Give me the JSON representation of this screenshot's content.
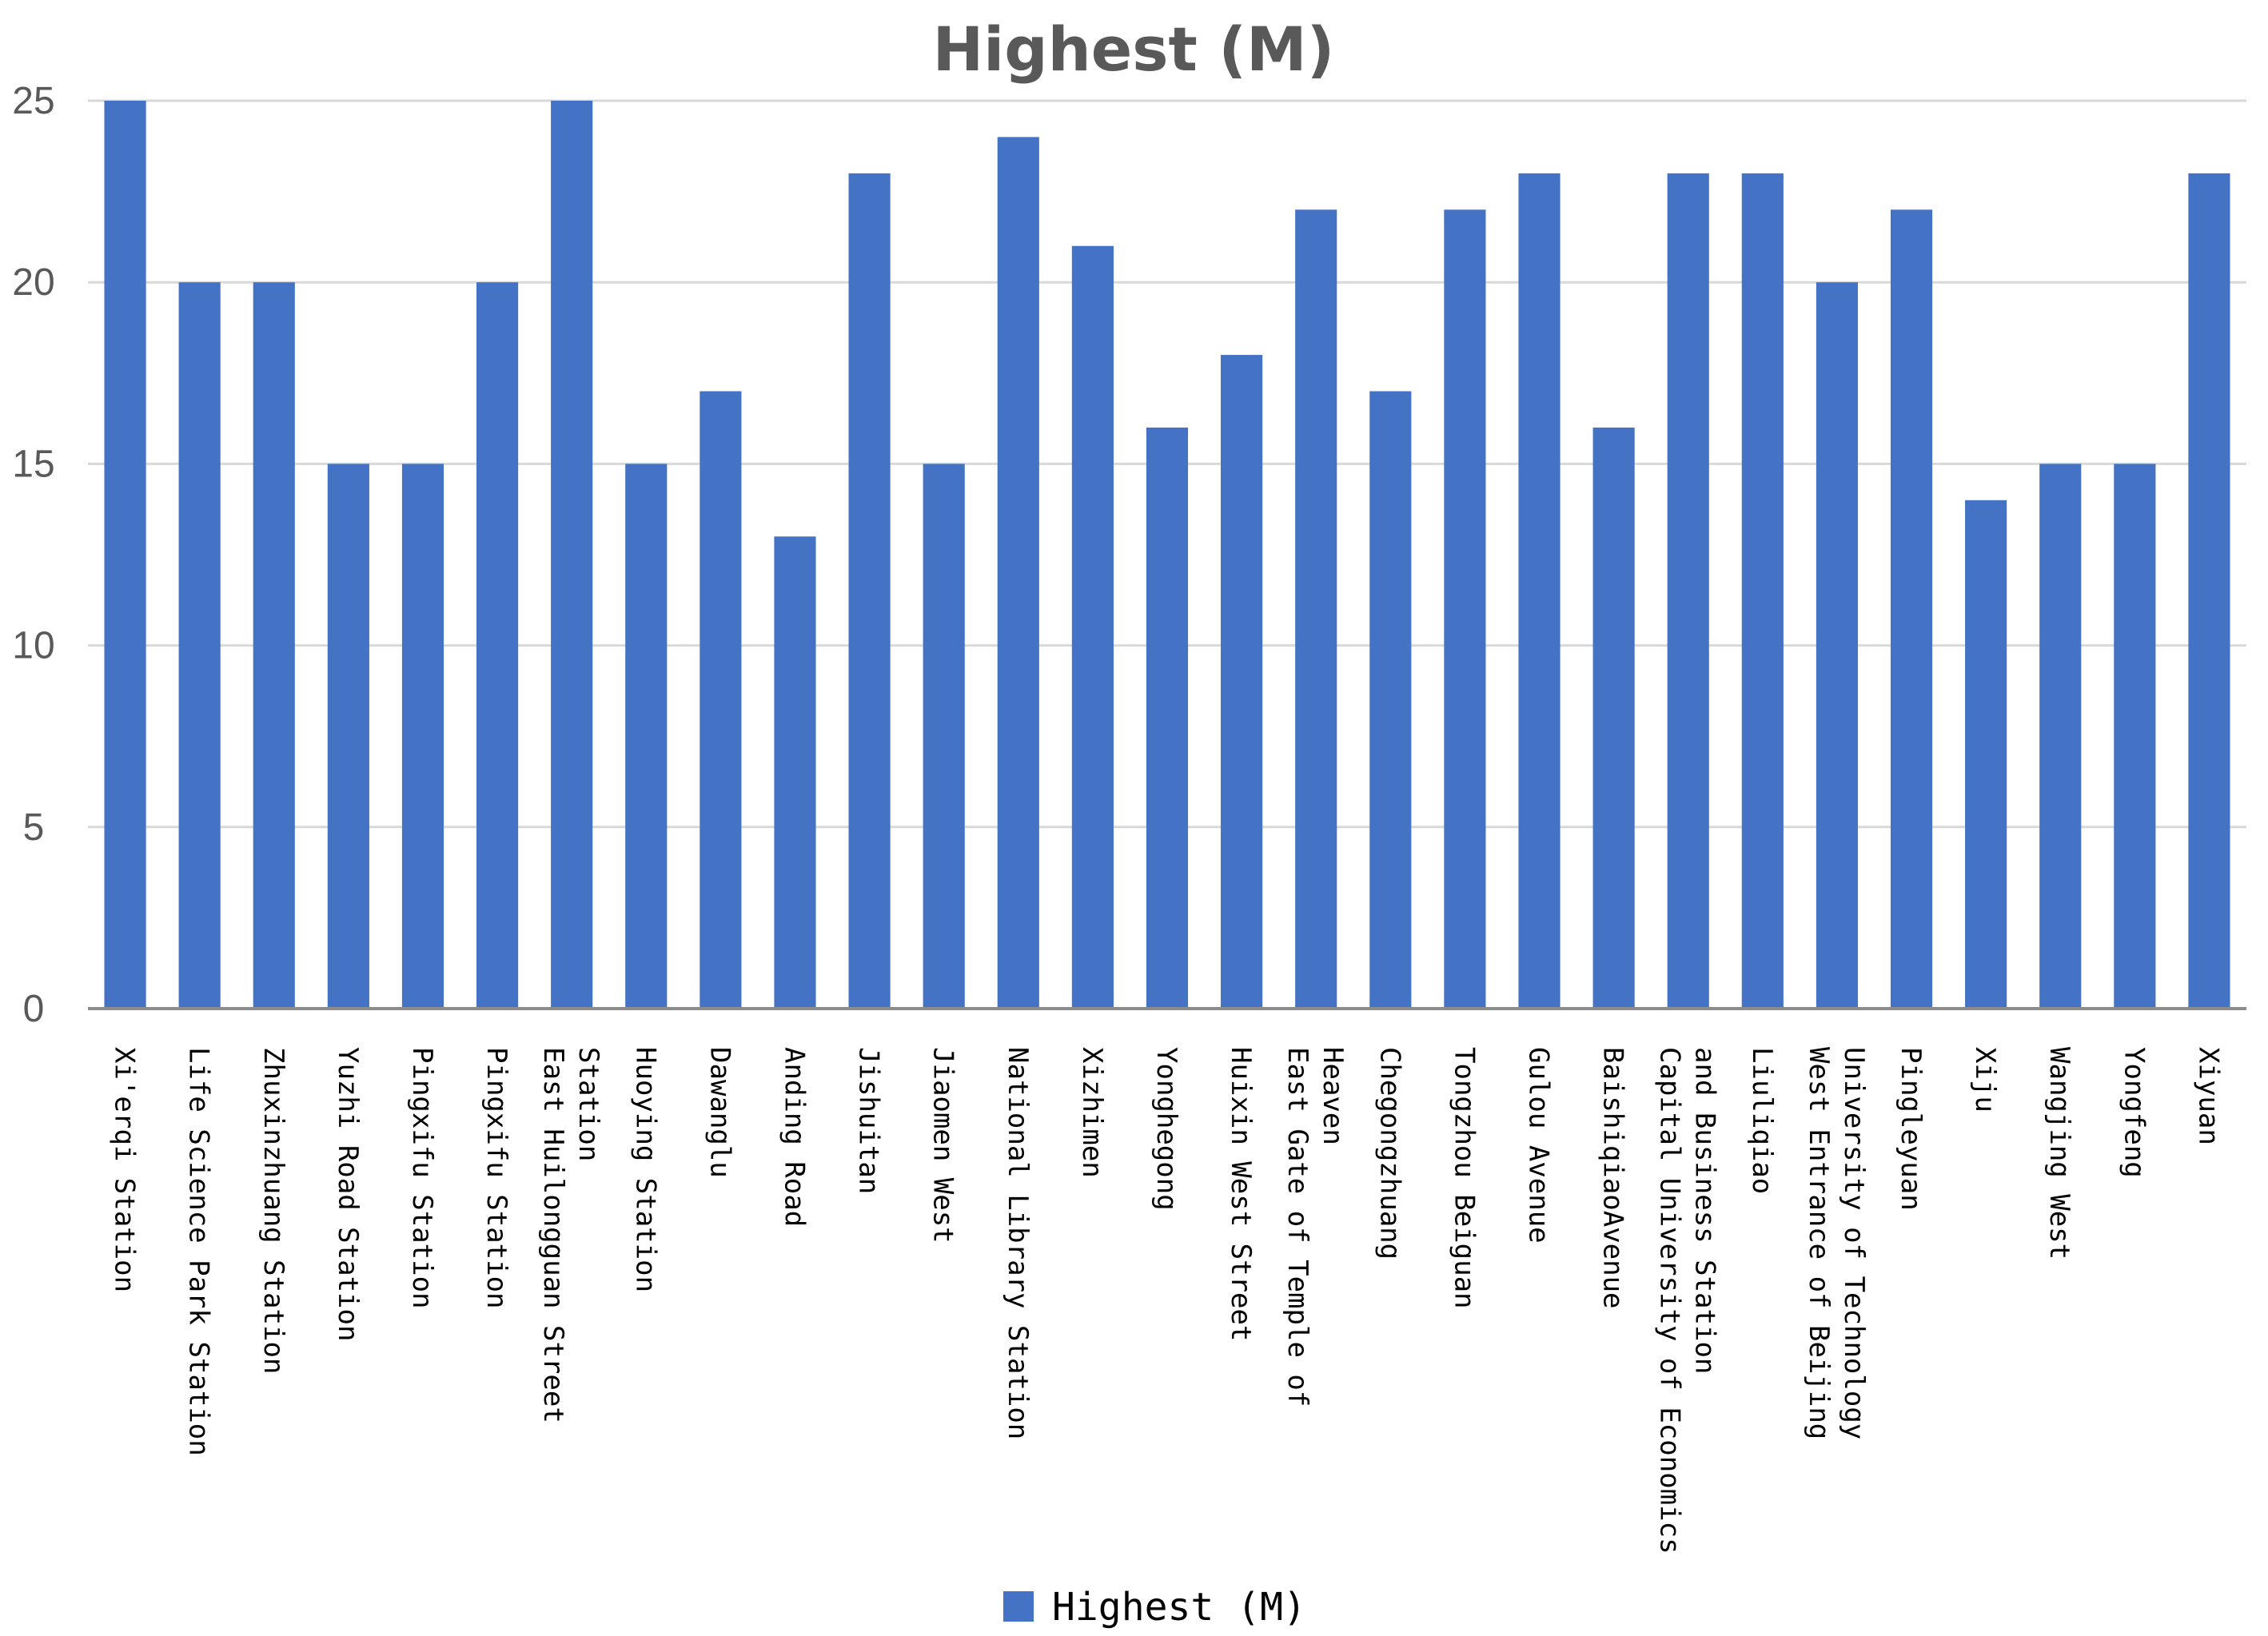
{
  "chart_data": {
    "type": "bar",
    "title": "Highest (M)",
    "xlabel": "",
    "ylabel": "",
    "ylim": [
      0,
      25
    ],
    "yticks": [
      0,
      5,
      10,
      15,
      20,
      25
    ],
    "grid": true,
    "legend_position": "bottom",
    "categories": [
      "Xi'erqi Station",
      "Life Science Park Station",
      "Zhuxinzhuang Station",
      "Yuzhi Road Station",
      "Pingxifu Station",
      "Pingxifu Station",
      "East Huilongguan Street Station",
      "Huoying Station",
      "Dawanglu",
      "Anding Road",
      "Jishuitan",
      "Jiaomen West",
      "National Library Station",
      "Xizhimen",
      "Yonghegong",
      "Huixin West Street",
      "East Gate of Temple of Heaven",
      "Chegongzhuang",
      "Tongzhou Beiguan",
      "Gulou Avenue",
      "BaishiqiaoAvenue",
      "Capital University of Economics and Business Station",
      "Liuliqiao",
      "West Entrance of Beijing University of Technology",
      "Pingleyuan",
      "Xiju",
      "Wangjing West",
      "Yongfeng",
      "Xiyuan"
    ],
    "tick_lines": [
      [
        "Xi'erqi Station"
      ],
      [
        "Life Science Park Station"
      ],
      [
        "Zhuxinzhuang Station"
      ],
      [
        "Yuzhi Road Station"
      ],
      [
        "Pingxifu Station"
      ],
      [
        "Pingxifu Station"
      ],
      [
        "East Huilongguan Street",
        "Station"
      ],
      [
        "Huoying Station"
      ],
      [
        "Dawanglu"
      ],
      [
        "Anding Road"
      ],
      [
        "Jishuitan"
      ],
      [
        "Jiaomen West"
      ],
      [
        "National Library Station"
      ],
      [
        "Xizhimen"
      ],
      [
        "Yonghegong"
      ],
      [
        "Huixin West Street"
      ],
      [
        "East Gate of Temple of",
        "Heaven"
      ],
      [
        "Chegongzhuang"
      ],
      [
        "Tongzhou Beiguan"
      ],
      [
        "Gulou Avenue"
      ],
      [
        "BaishiqiaoAvenue"
      ],
      [
        "Capital University of Economics",
        "and Business Station"
      ],
      [
        "Liuliqiao"
      ],
      [
        "West Entrance of Beijing",
        "University of Technology"
      ],
      [
        "Pingleyuan"
      ],
      [
        "Xiju"
      ],
      [
        "Wangjing West"
      ],
      [
        "Yongfeng"
      ],
      [
        "Xiyuan"
      ]
    ],
    "series": [
      {
        "name": "Highest (M)",
        "color": "#4472c4",
        "values": [
          25,
          20,
          20,
          15,
          15,
          20,
          25,
          15,
          17,
          13,
          23,
          15,
          24,
          21,
          16,
          18,
          22,
          17,
          22,
          23,
          16,
          23,
          23,
          20,
          22,
          14,
          15,
          15,
          23
        ]
      }
    ]
  }
}
